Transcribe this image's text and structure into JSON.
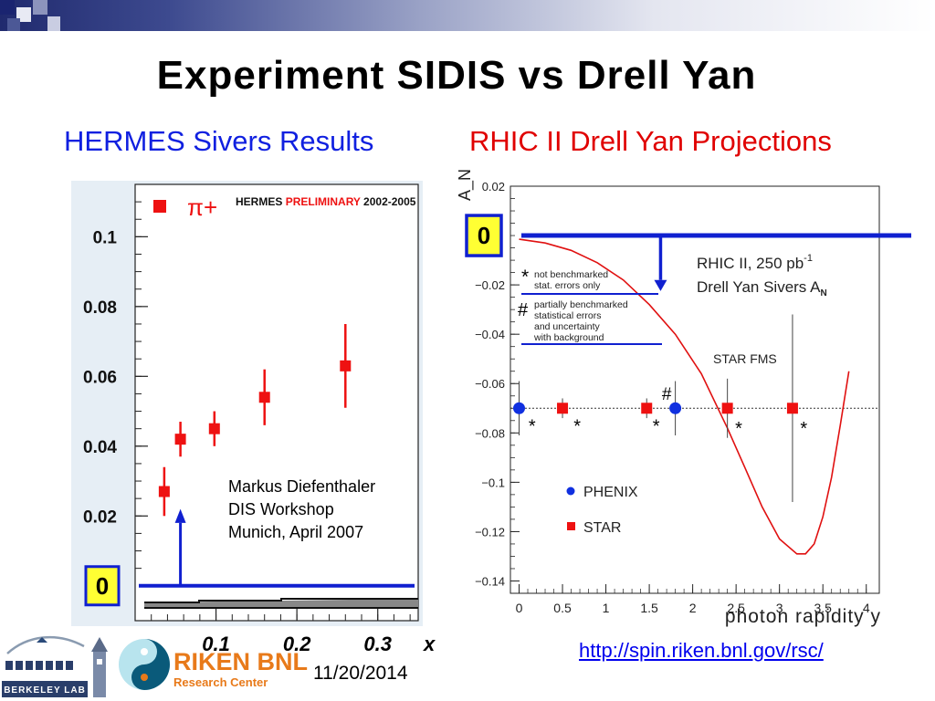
{
  "slide": {
    "title": "Experiment SIDIS vs Drell Yan",
    "left_heading": "HERMES Sivers Results",
    "right_heading": "RHIC II  Drell Yan Projections",
    "date": "11/20/2014",
    "url": "http://spin.riken.bnl.gov/rsc/"
  },
  "logos": {
    "berkeley_text": "BERKELEY LAB",
    "riken_name": "RIKEN BNL",
    "riken_sub": "Research Center"
  },
  "colors": {
    "heading_left": "#1020e0",
    "heading_right": "#e00000",
    "marker_red": "#ee1111",
    "marker_blue": "#1030e0",
    "arrow_blue": "#1020d0",
    "box_yellow": "#ffff33"
  },
  "chart_data": [
    {
      "type": "scatter",
      "name": "hermes",
      "legend": "π+",
      "label": "HERMES PRELIMINARY 2002-2005",
      "label_prefix": "HERMES",
      "label_colored": "PRELIMINARY",
      "label_suffix": "2002-2005",
      "xticks": [
        "0.1",
        "0.2",
        "0.3"
      ],
      "xlabel": "x",
      "yticks": [
        "0.02",
        "0.04",
        "0.06",
        "0.08",
        "0.1"
      ],
      "xlim": [
        0,
        0.35
      ],
      "ylim": [
        -0.01,
        0.115
      ],
      "points": [
        {
          "x": 0.036,
          "y": 0.027,
          "err": 0.007
        },
        {
          "x": 0.056,
          "y": 0.042,
          "err": 0.005
        },
        {
          "x": 0.098,
          "y": 0.045,
          "err": 0.005
        },
        {
          "x": 0.16,
          "y": 0.054,
          "err": 0.008
        },
        {
          "x": 0.26,
          "y": 0.063,
          "err": 0.012
        }
      ],
      "zero_box": "0",
      "annotation": [
        "Markus Diefenthaler",
        "DIS Workshop",
        "Munich, April 2007"
      ]
    },
    {
      "type": "line",
      "name": "rhic",
      "ylabel": "A_N",
      "xlabel": "photon rapidity y",
      "xticks": [
        "0",
        "0.5",
        "1",
        "1.5",
        "2",
        "2.5",
        "3",
        "3.5",
        "4"
      ],
      "yticks": [
        "0.02",
        "−0.02",
        "−0.04",
        "−0.06",
        "−0.08",
        "−0.1",
        "−0.12",
        "−0.14"
      ],
      "xlim": [
        -0.1,
        4.15
      ],
      "ylim": [
        -0.145,
        0.02
      ],
      "curve": {
        "x": [
          0,
          0.3,
          0.6,
          0.9,
          1.2,
          1.5,
          1.8,
          2.1,
          2.4,
          2.6,
          2.8,
          3.0,
          3.2,
          3.3,
          3.4,
          3.5,
          3.6,
          3.7,
          3.8
        ],
        "y": [
          -0.0015,
          -0.003,
          -0.006,
          -0.011,
          -0.018,
          -0.028,
          -0.04,
          -0.056,
          -0.078,
          -0.094,
          -0.11,
          -0.123,
          -0.129,
          -0.129,
          -0.125,
          -0.114,
          -0.098,
          -0.077,
          -0.055
        ]
      },
      "dotted_level": -0.07,
      "phenix": [
        {
          "x": 0.0,
          "y": -0.07,
          "err": 0.011
        },
        {
          "x": 1.8,
          "y": -0.07,
          "err": 0.011
        }
      ],
      "star": [
        {
          "x": 0.5,
          "y": -0.07,
          "err": 0.004
        },
        {
          "x": 1.47,
          "y": -0.07,
          "err": 0.004
        },
        {
          "x": 2.4,
          "y": -0.07,
          "err": 0.012
        },
        {
          "x": 3.15,
          "y": -0.07,
          "err": 0.038
        }
      ],
      "asterisks": [
        {
          "x": 0.15,
          "y": -0.076
        },
        {
          "x": 0.67,
          "y": -0.076
        },
        {
          "x": 1.58,
          "y": -0.076
        },
        {
          "x": 2.53,
          "y": -0.077
        },
        {
          "x": 3.28,
          "y": -0.077
        }
      ],
      "hash_mark": {
        "x": 1.7,
        "y": -0.064
      },
      "legend": [
        {
          "name": "PHENIX",
          "marker": "circle"
        },
        {
          "name": "STAR",
          "marker": "square"
        }
      ],
      "notes": {
        "star_mark": "*",
        "star_lines": [
          "not benchmarked",
          "stat. errors only"
        ],
        "hash_mark": "#",
        "hash_lines": [
          "partially benchmarked",
          "statistical errors",
          "and uncertainty",
          "with background"
        ],
        "label_line1": "RHIC II, 250 pb",
        "label_sup": "-1",
        "label_line2": "Drell Yan Sivers A",
        "label_sub": "N",
        "fms": "STAR FMS"
      },
      "zero_box": "0"
    }
  ]
}
